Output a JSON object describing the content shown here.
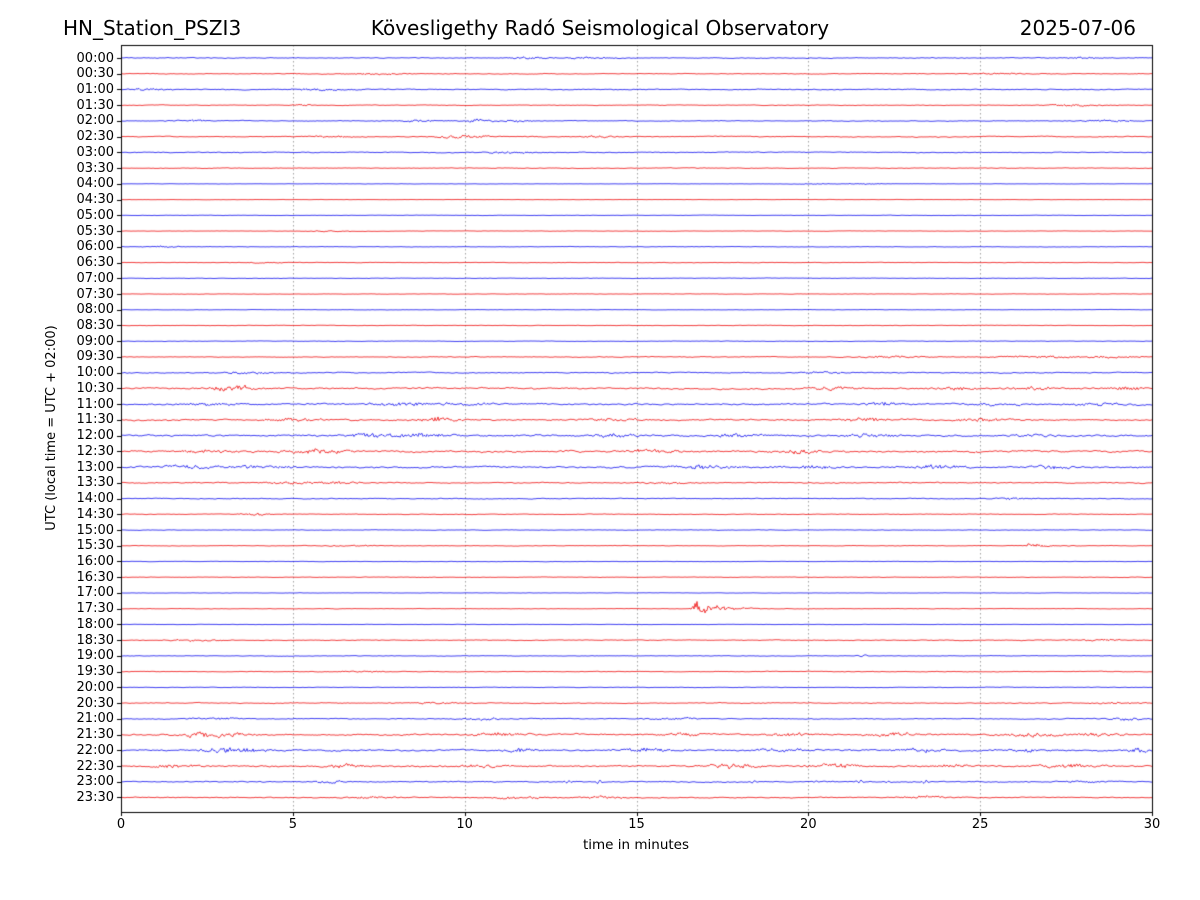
{
  "chart_data": {
    "type": "line",
    "subtype": "helicorder-day-plot",
    "station_label": "HN_Station_PSZI3",
    "title": "Kövesligethy Radó Seismological Observatory",
    "date": "2025-07-06",
    "xlabel": "time in minutes",
    "ylabel": "UTC (local time = UTC + 02:00)",
    "xlim": [
      0,
      30
    ],
    "x_ticks": [
      0,
      5,
      10,
      15,
      20,
      25,
      30
    ],
    "minutes_per_line": 30,
    "grid": {
      "vertical_minutes": [
        5,
        10,
        15,
        20,
        25
      ],
      "style": "dotted",
      "color": "#8a8a8a"
    },
    "colors": {
      "blue": "#0000ee",
      "red": "#ee0000",
      "axis": "#000000",
      "background": "#ffffff"
    },
    "traces": [
      {
        "label": "00:00",
        "color": "blue",
        "amp": 0.45,
        "events": [
          {
            "m": 11.8,
            "a": 0.7,
            "w": 0.5
          },
          {
            "m": 13.5,
            "a": 0.7,
            "w": 0.8
          },
          {
            "m": 28.0,
            "a": 0.8,
            "w": 0.6
          }
        ]
      },
      {
        "label": "00:30",
        "color": "red",
        "amp": 0.4,
        "events": [
          {
            "m": 7.5,
            "a": 0.6,
            "w": 0.8
          },
          {
            "m": 25.5,
            "a": 0.6,
            "w": 0.8
          }
        ]
      },
      {
        "label": "01:00",
        "color": "blue",
        "amp": 0.5,
        "events": [
          {
            "m": 0.8,
            "a": 0.8,
            "w": 0.6
          },
          {
            "m": 5.8,
            "a": 0.7,
            "w": 0.8
          }
        ]
      },
      {
        "label": "01:30",
        "color": "red",
        "amp": 0.35,
        "events": [
          {
            "m": 5.3,
            "a": 0.8,
            "w": 0.3
          },
          {
            "m": 27.8,
            "a": 0.9,
            "w": 0.8
          }
        ]
      },
      {
        "label": "02:00",
        "color": "blue",
        "amp": 0.4,
        "events": [
          {
            "m": 2.1,
            "a": 0.7,
            "w": 0.6
          },
          {
            "m": 8.6,
            "a": 0.8,
            "w": 0.6
          },
          {
            "m": 10.4,
            "a": 1.1,
            "w": 0.5
          },
          {
            "m": 11.5,
            "a": 0.9,
            "w": 0.5
          },
          {
            "m": 28.7,
            "a": 0.9,
            "w": 0.7
          }
        ]
      },
      {
        "label": "02:30",
        "color": "red",
        "amp": 0.45,
        "events": [
          {
            "m": 6.2,
            "a": 0.8,
            "w": 0.6
          },
          {
            "m": 9.6,
            "a": 0.9,
            "w": 0.5
          },
          {
            "m": 10.4,
            "a": 0.9,
            "w": 0.5
          },
          {
            "m": 13.9,
            "a": 0.8,
            "w": 0.5
          }
        ]
      },
      {
        "label": "03:00",
        "color": "blue",
        "amp": 0.45,
        "events": [
          {
            "m": 11.4,
            "a": 0.8,
            "w": 0.8
          }
        ]
      },
      {
        "label": "03:30",
        "color": "red",
        "amp": 0.35,
        "events": []
      },
      {
        "label": "04:00",
        "color": "blue",
        "amp": 0.18,
        "events": [
          {
            "m": 20.2,
            "a": 0.4,
            "w": 0.4
          },
          {
            "m": 21.6,
            "a": 0.5,
            "w": 0.5
          }
        ]
      },
      {
        "label": "04:30",
        "color": "red",
        "amp": 0.18,
        "events": []
      },
      {
        "label": "05:00",
        "color": "blue",
        "amp": 0.22,
        "events": []
      },
      {
        "label": "05:30",
        "color": "red",
        "amp": 0.22,
        "events": [
          {
            "m": 6.0,
            "a": 0.4,
            "w": 0.6
          }
        ]
      },
      {
        "label": "06:00",
        "color": "blue",
        "amp": 0.28,
        "events": [
          {
            "m": 1.2,
            "a": 0.5,
            "w": 0.6
          }
        ]
      },
      {
        "label": "06:30",
        "color": "red",
        "amp": 0.28,
        "events": [
          {
            "m": 4.2,
            "a": 0.5,
            "w": 0.5
          }
        ]
      },
      {
        "label": "07:00",
        "color": "blue",
        "amp": 0.28,
        "events": []
      },
      {
        "label": "07:30",
        "color": "red",
        "amp": 0.24,
        "events": []
      },
      {
        "label": "08:00",
        "color": "blue",
        "amp": 0.22,
        "events": []
      },
      {
        "label": "08:30",
        "color": "red",
        "amp": 0.26,
        "events": []
      },
      {
        "label": "09:00",
        "color": "blue",
        "amp": 0.28,
        "events": []
      },
      {
        "label": "09:30",
        "color": "red",
        "amp": 0.4,
        "ramp": [
          0.8,
          1.4
        ],
        "events": [
          {
            "m": 22.4,
            "a": 0.7,
            "w": 0.8
          },
          {
            "m": 26.8,
            "a": 0.8,
            "w": 1.0
          },
          {
            "m": 28.8,
            "a": 0.8,
            "w": 0.8
          }
        ]
      },
      {
        "label": "10:00",
        "color": "blue",
        "amp": 0.55,
        "events": [
          {
            "m": 3.6,
            "a": 0.9,
            "w": 0.8
          },
          {
            "m": 20.5,
            "a": 0.8,
            "w": 0.7
          }
        ]
      },
      {
        "label": "10:30",
        "color": "red",
        "amp": 0.85,
        "events": [
          {
            "m": 2.8,
            "a": 1.2,
            "w": 0.5
          },
          {
            "m": 3.4,
            "a": 1.8,
            "w": 0.5
          },
          {
            "m": 20.7,
            "a": 1.2,
            "w": 0.6
          },
          {
            "m": 24.4,
            "a": 1.1,
            "w": 0.6
          },
          {
            "m": 26.6,
            "a": 1.1,
            "w": 0.6
          },
          {
            "m": 29.3,
            "a": 1.2,
            "w": 0.5
          }
        ]
      },
      {
        "label": "11:00",
        "color": "blue",
        "amp": 0.85,
        "events": [
          {
            "m": 2.6,
            "a": 1.1,
            "w": 0.7
          },
          {
            "m": 8.1,
            "a": 1.3,
            "w": 0.9
          },
          {
            "m": 10.0,
            "a": 1.1,
            "w": 0.6
          },
          {
            "m": 22.2,
            "a": 1.4,
            "w": 0.5
          },
          {
            "m": 25.4,
            "a": 1.1,
            "w": 0.7
          },
          {
            "m": 28.4,
            "a": 1.3,
            "w": 0.6
          }
        ]
      },
      {
        "label": "11:30",
        "color": "red",
        "amp": 0.85,
        "events": [
          {
            "m": 5.1,
            "a": 1.1,
            "w": 0.7
          },
          {
            "m": 9.2,
            "a": 1.8,
            "w": 0.6
          },
          {
            "m": 14.5,
            "a": 1.1,
            "w": 0.8
          },
          {
            "m": 21.6,
            "a": 1.3,
            "w": 0.7
          },
          {
            "m": 25.0,
            "a": 1.4,
            "w": 0.6
          }
        ]
      },
      {
        "label": "12:00",
        "color": "blue",
        "amp": 0.95,
        "events": [
          {
            "m": 7.3,
            "a": 1.3,
            "w": 0.8
          },
          {
            "m": 8.8,
            "a": 1.6,
            "w": 0.7
          },
          {
            "m": 14.3,
            "a": 1.3,
            "w": 0.6
          },
          {
            "m": 17.8,
            "a": 1.1,
            "w": 0.7
          },
          {
            "m": 21.8,
            "a": 1.2,
            "w": 0.7
          },
          {
            "m": 26.6,
            "a": 1.0,
            "w": 0.6
          }
        ]
      },
      {
        "label": "12:30",
        "color": "red",
        "amp": 1.0,
        "events": [
          {
            "m": 2.5,
            "a": 1.2,
            "w": 0.8
          },
          {
            "m": 5.6,
            "a": 1.7,
            "w": 0.9
          },
          {
            "m": 15.5,
            "a": 1.3,
            "w": 0.8
          },
          {
            "m": 19.8,
            "a": 1.2,
            "w": 0.7
          }
        ]
      },
      {
        "label": "13:00",
        "color": "blue",
        "amp": 1.0,
        "events": [
          {
            "m": 2.0,
            "a": 1.2,
            "w": 0.8
          },
          {
            "m": 4.2,
            "a": 1.4,
            "w": 0.8
          },
          {
            "m": 16.9,
            "a": 1.5,
            "w": 0.8
          },
          {
            "m": 20.0,
            "a": 1.1,
            "w": 0.7
          },
          {
            "m": 23.8,
            "a": 1.4,
            "w": 0.8
          },
          {
            "m": 27.0,
            "a": 1.1,
            "w": 0.6
          }
        ]
      },
      {
        "label": "13:30",
        "color": "red",
        "amp": 0.55,
        "events": [
          {
            "m": 4.9,
            "a": 1.0,
            "w": 0.6
          },
          {
            "m": 6.2,
            "a": 0.9,
            "w": 0.8
          },
          {
            "m": 16.0,
            "a": 0.7,
            "w": 0.8
          }
        ]
      },
      {
        "label": "14:00",
        "color": "blue",
        "amp": 0.45,
        "events": [
          {
            "m": 25.8,
            "a": 0.7,
            "w": 0.7
          }
        ]
      },
      {
        "label": "14:30",
        "color": "red",
        "amp": 0.35,
        "events": [
          {
            "m": 3.9,
            "a": 1.1,
            "w": 0.4
          }
        ]
      },
      {
        "label": "15:00",
        "color": "blue",
        "amp": 0.28,
        "events": []
      },
      {
        "label": "15:30",
        "color": "red",
        "amp": 0.28,
        "events": [
          {
            "m": 6.8,
            "a": 0.5,
            "w": 0.8
          },
          {
            "m": 26.45,
            "a": 2.0,
            "t": "quake",
            "d": 1.2
          }
        ]
      },
      {
        "label": "16:00",
        "color": "blue",
        "amp": 0.22,
        "events": []
      },
      {
        "label": "16:30",
        "color": "red",
        "amp": 0.3,
        "events": []
      },
      {
        "label": "17:00",
        "color": "blue",
        "amp": 0.2,
        "events": []
      },
      {
        "label": "17:30",
        "color": "red",
        "amp": 0.26,
        "events": [
          {
            "m": 16.75,
            "a": 5.0,
            "t": "quake",
            "d": 1.8
          }
        ]
      },
      {
        "label": "18:00",
        "color": "blue",
        "amp": 0.2,
        "events": []
      },
      {
        "label": "18:30",
        "color": "red",
        "amp": 0.4,
        "events": [
          {
            "m": 2.2,
            "a": 0.6,
            "w": 0.8
          },
          {
            "m": 28.5,
            "a": 0.7,
            "w": 0.7
          }
        ]
      },
      {
        "label": "19:00",
        "color": "blue",
        "amp": 0.3,
        "events": [
          {
            "m": 21.6,
            "a": 1.1,
            "w": 0.25,
            "t": "spike"
          }
        ]
      },
      {
        "label": "19:30",
        "color": "red",
        "amp": 0.35,
        "events": [
          {
            "m": 7.0,
            "a": 0.6,
            "w": 0.7
          }
        ]
      },
      {
        "label": "20:00",
        "color": "blue",
        "amp": 0.3,
        "events": []
      },
      {
        "label": "20:30",
        "color": "red",
        "amp": 0.45,
        "events": [
          {
            "m": 9.2,
            "a": 0.7,
            "w": 0.8
          },
          {
            "m": 29.0,
            "a": 0.9,
            "w": 0.6
          }
        ]
      },
      {
        "label": "21:00",
        "color": "blue",
        "amp": 0.5,
        "events": [
          {
            "m": 2.8,
            "a": 0.8,
            "w": 0.8
          },
          {
            "m": 10.5,
            "a": 0.9,
            "w": 0.7
          },
          {
            "m": 16.0,
            "a": 0.8,
            "w": 0.7
          },
          {
            "m": 29.3,
            "a": 1.1,
            "w": 0.5
          }
        ]
      },
      {
        "label": "21:30",
        "color": "red",
        "amp": 0.85,
        "events": [
          {
            "m": 2.3,
            "a": 1.9,
            "w": 0.5
          },
          {
            "m": 3.2,
            "a": 1.2,
            "w": 0.6
          },
          {
            "m": 11.0,
            "a": 1.3,
            "w": 0.7
          },
          {
            "m": 16.5,
            "a": 1.1,
            "w": 0.7
          },
          {
            "m": 19.5,
            "a": 1.2,
            "w": 0.6
          },
          {
            "m": 22.5,
            "a": 1.3,
            "w": 0.7
          },
          {
            "m": 26.5,
            "a": 1.4,
            "w": 0.8
          },
          {
            "m": 28.5,
            "a": 1.3,
            "w": 0.6
          }
        ]
      },
      {
        "label": "22:00",
        "color": "blue",
        "amp": 0.85,
        "events": [
          {
            "m": 2.9,
            "a": 1.5,
            "w": 0.6
          },
          {
            "m": 3.7,
            "a": 1.3,
            "w": 0.6
          },
          {
            "m": 11.7,
            "a": 1.6,
            "w": 0.5
          },
          {
            "m": 15.3,
            "a": 1.2,
            "w": 0.7
          },
          {
            "m": 19.2,
            "a": 1.2,
            "w": 0.7
          },
          {
            "m": 23.3,
            "a": 1.4,
            "w": 0.6
          },
          {
            "m": 26.3,
            "a": 1.2,
            "w": 0.7
          },
          {
            "m": 29.6,
            "a": 1.5,
            "w": 0.4
          }
        ]
      },
      {
        "label": "22:30",
        "color": "red",
        "amp": 0.85,
        "events": [
          {
            "m": 1.5,
            "a": 1.1,
            "w": 0.7
          },
          {
            "m": 6.6,
            "a": 1.4,
            "w": 0.6
          },
          {
            "m": 10.5,
            "a": 1.1,
            "w": 0.8
          },
          {
            "m": 17.8,
            "a": 1.6,
            "w": 0.7
          },
          {
            "m": 20.8,
            "a": 1.5,
            "w": 0.7
          },
          {
            "m": 24.2,
            "a": 1.2,
            "w": 0.6
          },
          {
            "m": 27.5,
            "a": 1.3,
            "w": 0.8
          }
        ]
      },
      {
        "label": "23:00",
        "color": "blue",
        "amp": 0.6,
        "events": [
          {
            "m": 6.1,
            "a": 0.9,
            "w": 0.5
          },
          {
            "m": 13.0,
            "a": 1.6,
            "w": 0.15,
            "t": "spike"
          },
          {
            "m": 13.9,
            "a": 1.8,
            "w": 0.15,
            "t": "spike"
          },
          {
            "m": 18.4,
            "a": 1.3,
            "w": 0.15,
            "t": "spike"
          },
          {
            "m": 20.2,
            "a": 1.1,
            "w": 0.15,
            "t": "spike"
          },
          {
            "m": 21.5,
            "a": 1.5,
            "w": 0.15,
            "t": "spike"
          },
          {
            "m": 22.3,
            "a": 1.1,
            "w": 0.15,
            "t": "spike"
          },
          {
            "m": 23.4,
            "a": 1.7,
            "w": 0.15,
            "t": "spike"
          },
          {
            "m": 28.0,
            "a": 0.9,
            "w": 0.5
          }
        ]
      },
      {
        "label": "23:30",
        "color": "red",
        "amp": 0.5,
        "events": [
          {
            "m": 7.2,
            "a": 0.8,
            "w": 0.7
          },
          {
            "m": 11.5,
            "a": 0.9,
            "w": 0.8
          },
          {
            "m": 14.0,
            "a": 0.9,
            "w": 0.7
          },
          {
            "m": 23.3,
            "a": 1.2,
            "w": 0.6
          }
        ]
      }
    ]
  }
}
